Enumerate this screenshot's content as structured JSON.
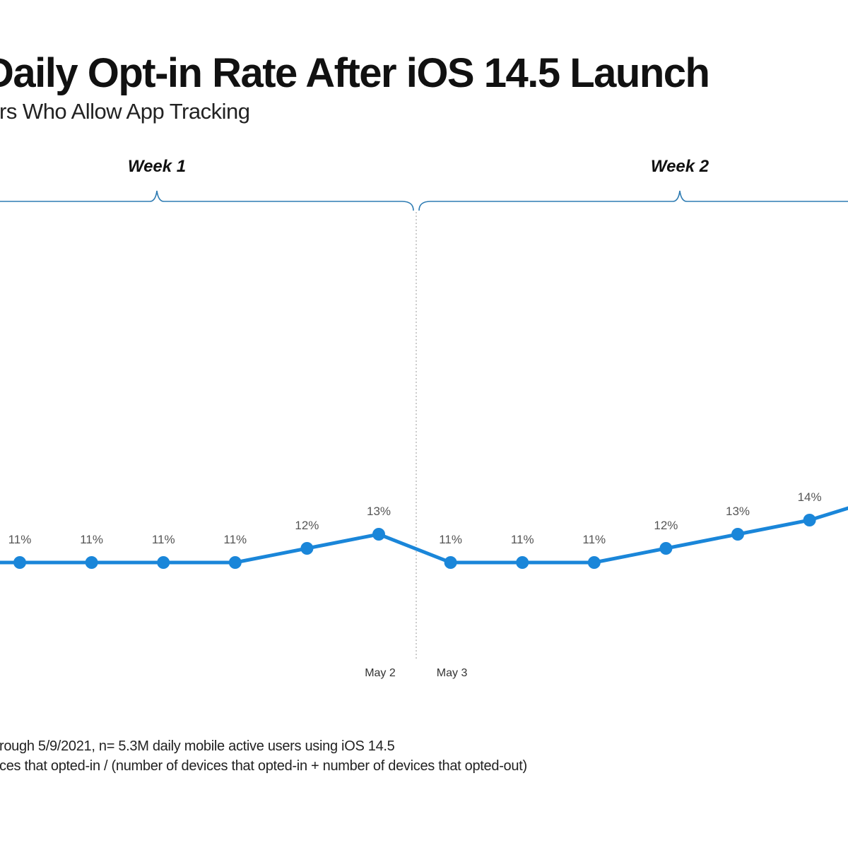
{
  "title": "Daily Opt-in Rate After iOS 14.5 Launch",
  "subtitle": "rs Who Allow App Tracking",
  "footnotes": [
    "rough 5/9/2021, n= 5.3M daily mobile active users using iOS 14.5",
    "ces that opted-in / (number of devices that opted-in + number of devices that opted-out)"
  ],
  "colors": {
    "line": "#1a86d9",
    "bracket": "#2f7cb3",
    "divider": "#bbbbbb"
  },
  "chart_data": {
    "type": "line",
    "weeks": [
      {
        "label": "Week 1"
      },
      {
        "label": "Week 2"
      }
    ],
    "x_tick_labels": [
      "May 2",
      "May 3"
    ],
    "series": [
      {
        "values": [
          11,
          11,
          11,
          11,
          12,
          13,
          11,
          11,
          11,
          12,
          13,
          14
        ],
        "data_labels": [
          "11%",
          "11%",
          "11%",
          "11%",
          "12%",
          "13%",
          "11%",
          "11%",
          "11%",
          "12%",
          "13%",
          "14%"
        ]
      }
    ],
    "grid": false,
    "legend": "none"
  }
}
